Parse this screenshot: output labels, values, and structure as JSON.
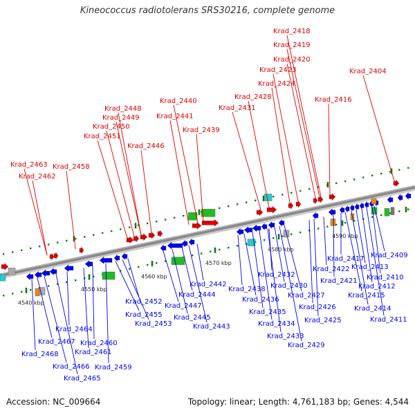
{
  "title": "Kineococcus radiotolerans SRS30216, complete genome",
  "footer": {
    "accession": "Accession: NC_009664",
    "summary": "Topology: linear; Length: 4,761,183 bp; Genes: 4,544"
  },
  "colors": {
    "forward_gene": "#dd0000",
    "reverse_gene": "#0000ee",
    "rna_green": "#22bb22",
    "rna_cyan": "#22cccc",
    "rna_orange": "#ee8800",
    "pseudo_gray": "#aaaaaa",
    "tick_green": "#117711",
    "backbone": "#888888"
  },
  "kbp_markers": [
    "4540 kbp",
    "4550 kbp",
    "4560 kbp",
    "4570 kbp",
    "4580 kbp",
    "4590 kbp"
  ],
  "forward_strand_labels": [
    "Krad_2463",
    "Krad_2462",
    "Krad_2458",
    "Krad_2451",
    "Krad_2450",
    "Krad_2449",
    "Krad_2448",
    "Krad_2446",
    "Krad_2441",
    "Krad_2440",
    "Krad_2439",
    "Krad_2431",
    "Krad_2428",
    "Krad_2424",
    "Krad_2423",
    "Krad_2420",
    "Krad_2419",
    "Krad_2418",
    "Krad_2416",
    "Krad_2404"
  ],
  "reverse_strand_labels": [
    "Krad_2468",
    "Krad_2467",
    "Krad_2466",
    "Krad_2465",
    "Krad_2464",
    "Krad_2461",
    "Krad_2460",
    "Krad_2459",
    "Krad_2455",
    "Krad_2453",
    "Krad_2452",
    "Krad_2447",
    "Krad_2445",
    "Krad_2444",
    "Krad_2443",
    "Krad_2442",
    "Krad_2438",
    "Krad_2436",
    "Krad_2435",
    "Krad_2434",
    "Krad_2433",
    "Krad_2432",
    "Krad_2430",
    "Krad_2429",
    "Krad_2427",
    "Krad_2426",
    "Krad_2425",
    "Krad_2422",
    "Krad_2421",
    "Krad_2417",
    "Krad_2415",
    "Krad_2414",
    "Krad_2413",
    "Krad_2412",
    "Krad_2411",
    "Krad_2410",
    "Krad_2409"
  ]
}
